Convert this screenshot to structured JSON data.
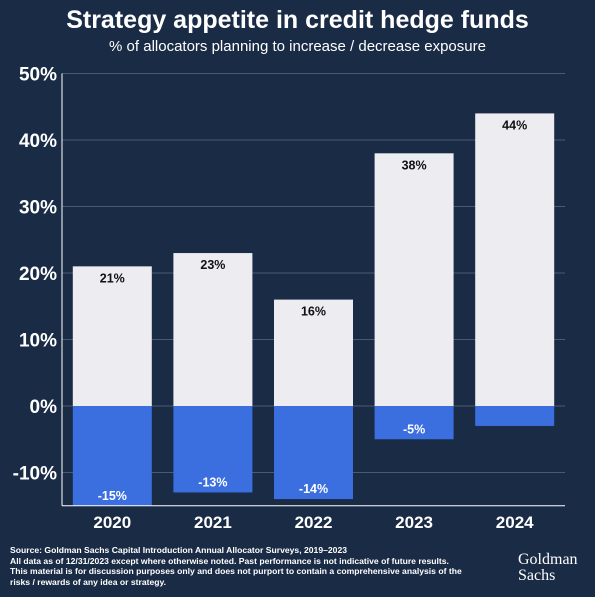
{
  "chart_data": {
    "type": "bar",
    "title": "Strategy appetite in credit hedge funds",
    "subtitle": "% of allocators planning to increase / decrease exposure",
    "categories": [
      "2020",
      "2021",
      "2022",
      "2023",
      "2024"
    ],
    "series": [
      {
        "values": [
          21,
          23,
          16,
          38,
          44
        ],
        "labels": [
          "21%",
          "23%",
          "16%",
          "38%",
          "44%"
        ],
        "color": "#ececf1"
      },
      {
        "values": [
          -15,
          -13,
          -14,
          -5,
          -3
        ],
        "labels": [
          "-15%",
          "-13%",
          "-14%",
          "-5%",
          ""
        ],
        "color": "#3b6fe0"
      }
    ],
    "stacked": true,
    "ylim": [
      -15,
      50
    ],
    "yticks": [
      -10,
      0,
      10,
      20,
      30,
      40,
      50
    ],
    "ytick_labels": [
      "-10%",
      "0%",
      "10%",
      "20%",
      "30%",
      "40%",
      "50%"
    ],
    "grid": true,
    "gridline_color": "#4a5a72",
    "axis_color": "#ffffff"
  },
  "footer": {
    "lines": [
      "Source: Goldman Sachs Capital Introduction Annual Allocator Surveys, 2019–2023",
      "All data as of 12/31/2023 except where otherwise noted. Past performance is not indicative of future results.",
      "This material is for discussion purposes only and does not purport to contain a comprehensive analysis of the",
      "risks / rewards of any idea or strategy."
    ]
  },
  "logo": {
    "line1": "Goldman",
    "line2": "Sachs"
  }
}
